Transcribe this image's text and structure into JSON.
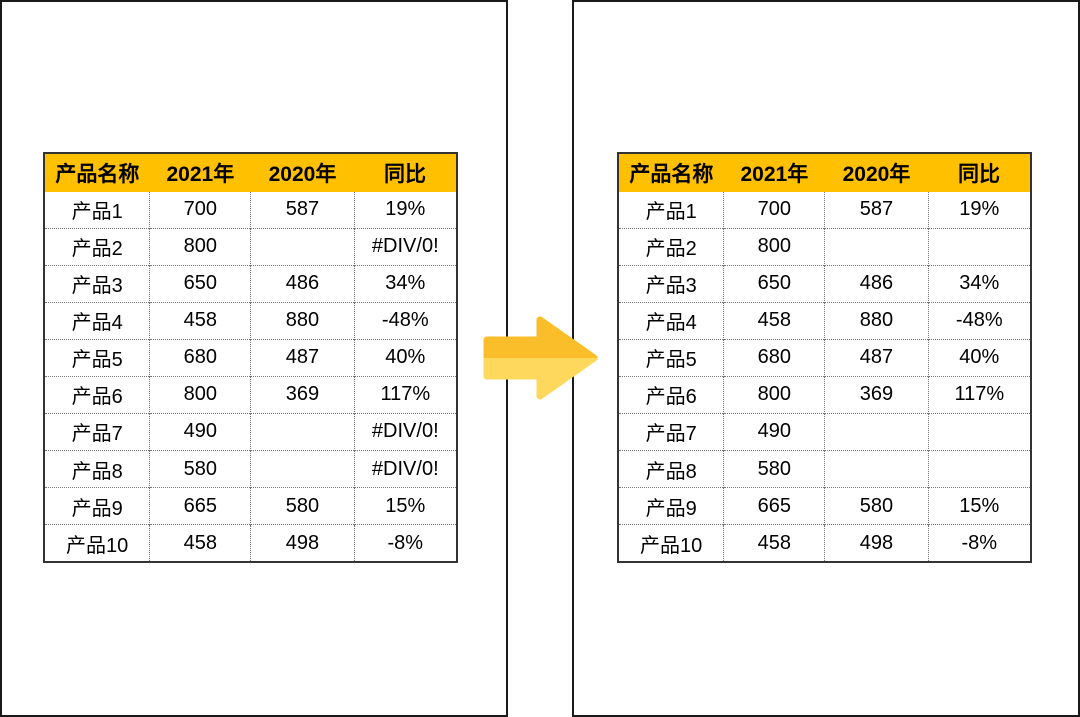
{
  "figure": {
    "before_table": {
      "headers": [
        "产品名称",
        "2021年",
        "2020年",
        "同比"
      ],
      "rows": [
        [
          "产品1",
          "700",
          "587",
          "19%"
        ],
        [
          "产品2",
          "800",
          "",
          "#DIV/0!"
        ],
        [
          "产品3",
          "650",
          "486",
          "34%"
        ],
        [
          "产品4",
          "458",
          "880",
          "-48%"
        ],
        [
          "产品5",
          "680",
          "487",
          "40%"
        ],
        [
          "产品6",
          "800",
          "369",
          "117%"
        ],
        [
          "产品7",
          "490",
          "",
          "#DIV/0!"
        ],
        [
          "产品8",
          "580",
          "",
          "#DIV/0!"
        ],
        [
          "产品9",
          "665",
          "580",
          "15%"
        ],
        [
          "产品10",
          "458",
          "498",
          "-8%"
        ]
      ]
    },
    "after_table": {
      "headers": [
        "产品名称",
        "2021年",
        "2020年",
        "同比"
      ],
      "rows": [
        [
          "产品1",
          "700",
          "587",
          "19%"
        ],
        [
          "产品2",
          "800",
          "",
          ""
        ],
        [
          "产品3",
          "650",
          "486",
          "34%"
        ],
        [
          "产品4",
          "458",
          "880",
          "-48%"
        ],
        [
          "产品5",
          "680",
          "487",
          "40%"
        ],
        [
          "产品6",
          "800",
          "369",
          "117%"
        ],
        [
          "产品7",
          "490",
          "",
          ""
        ],
        [
          "产品8",
          "580",
          "",
          ""
        ],
        [
          "产品9",
          "665",
          "580",
          "15%"
        ],
        [
          "产品10",
          "458",
          "498",
          "-8%"
        ]
      ]
    },
    "arrow": {
      "direction": "right",
      "color_top": "#FBBE2B",
      "color_bottom": "#FDD85D"
    },
    "colors": {
      "header_bg": "#FFC000",
      "header_text": "#000000",
      "cell_text": "#000000",
      "table_border": "#333333",
      "grid_dotted": "#757575",
      "panel_border": "#1A1A1A"
    }
  }
}
